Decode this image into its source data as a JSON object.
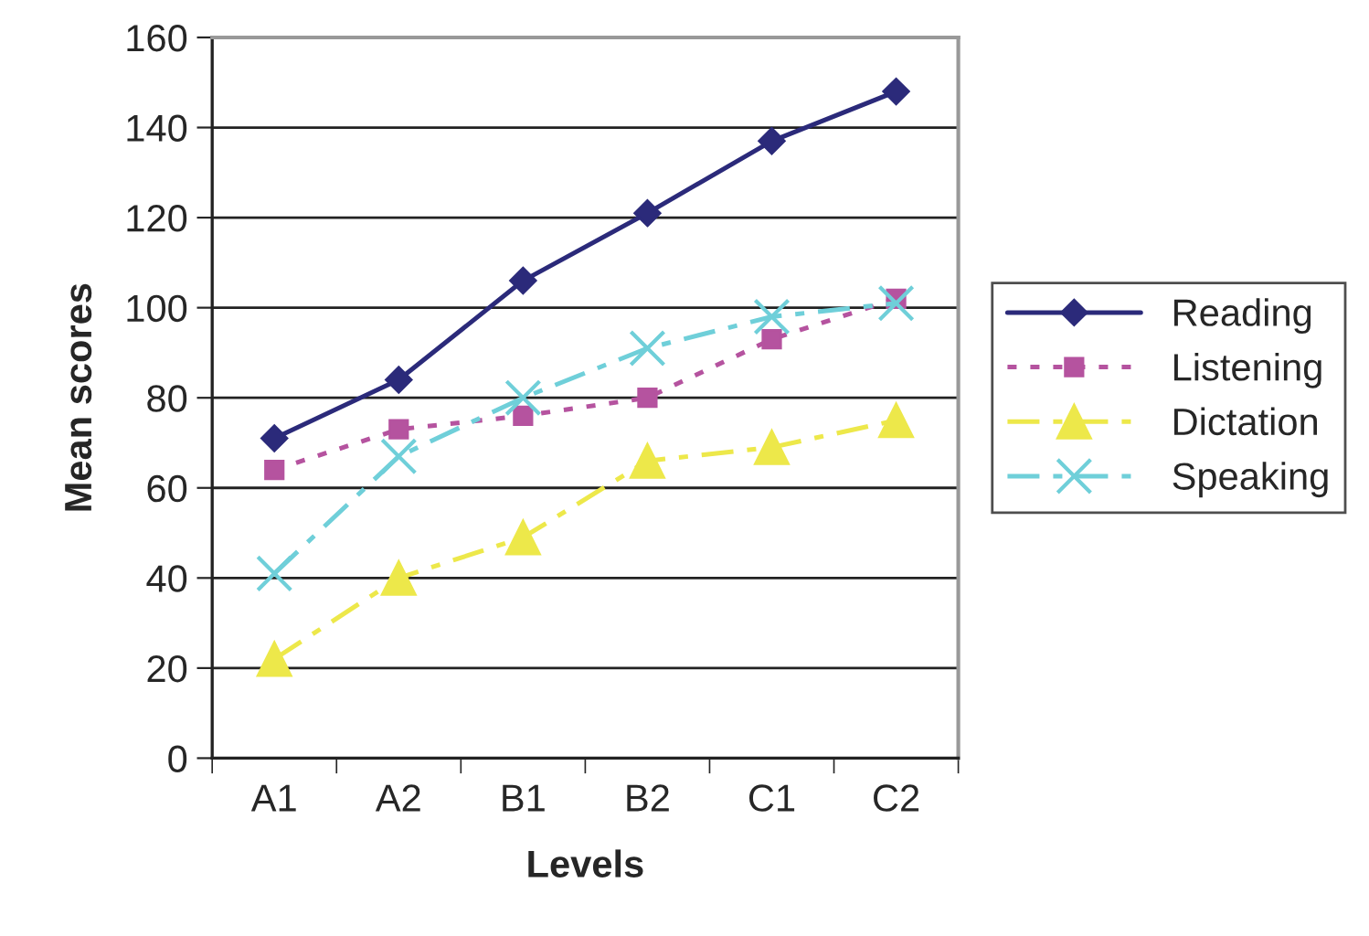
{
  "chart_data": {
    "type": "line",
    "xlabel": "Levels",
    "ylabel": "Mean scores",
    "categories": [
      "A1",
      "A2",
      "B1",
      "B2",
      "C1",
      "C2"
    ],
    "series": [
      {
        "name": "Reading",
        "color": "#2b2a7a",
        "marker": "diamond",
        "line_style": "solid",
        "values": [
          71,
          84,
          106,
          121,
          137,
          148
        ]
      },
      {
        "name": "Listening",
        "color": "#b5539f",
        "marker": "square",
        "line_style": "dotted",
        "values": [
          64,
          73,
          76,
          80,
          93,
          102
        ]
      },
      {
        "name": "Dictation",
        "color": "#ede84a",
        "marker": "triangle",
        "line_style": "dashed",
        "values": [
          22,
          40,
          49,
          66,
          69,
          75
        ]
      },
      {
        "name": "Speaking",
        "color": "#6fcfd9",
        "marker": "cross",
        "line_style": "dashed",
        "values": [
          41,
          67,
          80,
          91,
          98,
          101
        ]
      }
    ],
    "ylim": [
      0,
      160
    ],
    "yticks": [
      0,
      20,
      40,
      60,
      80,
      100,
      120,
      140,
      160
    ],
    "grid": "y",
    "legend": "right"
  }
}
